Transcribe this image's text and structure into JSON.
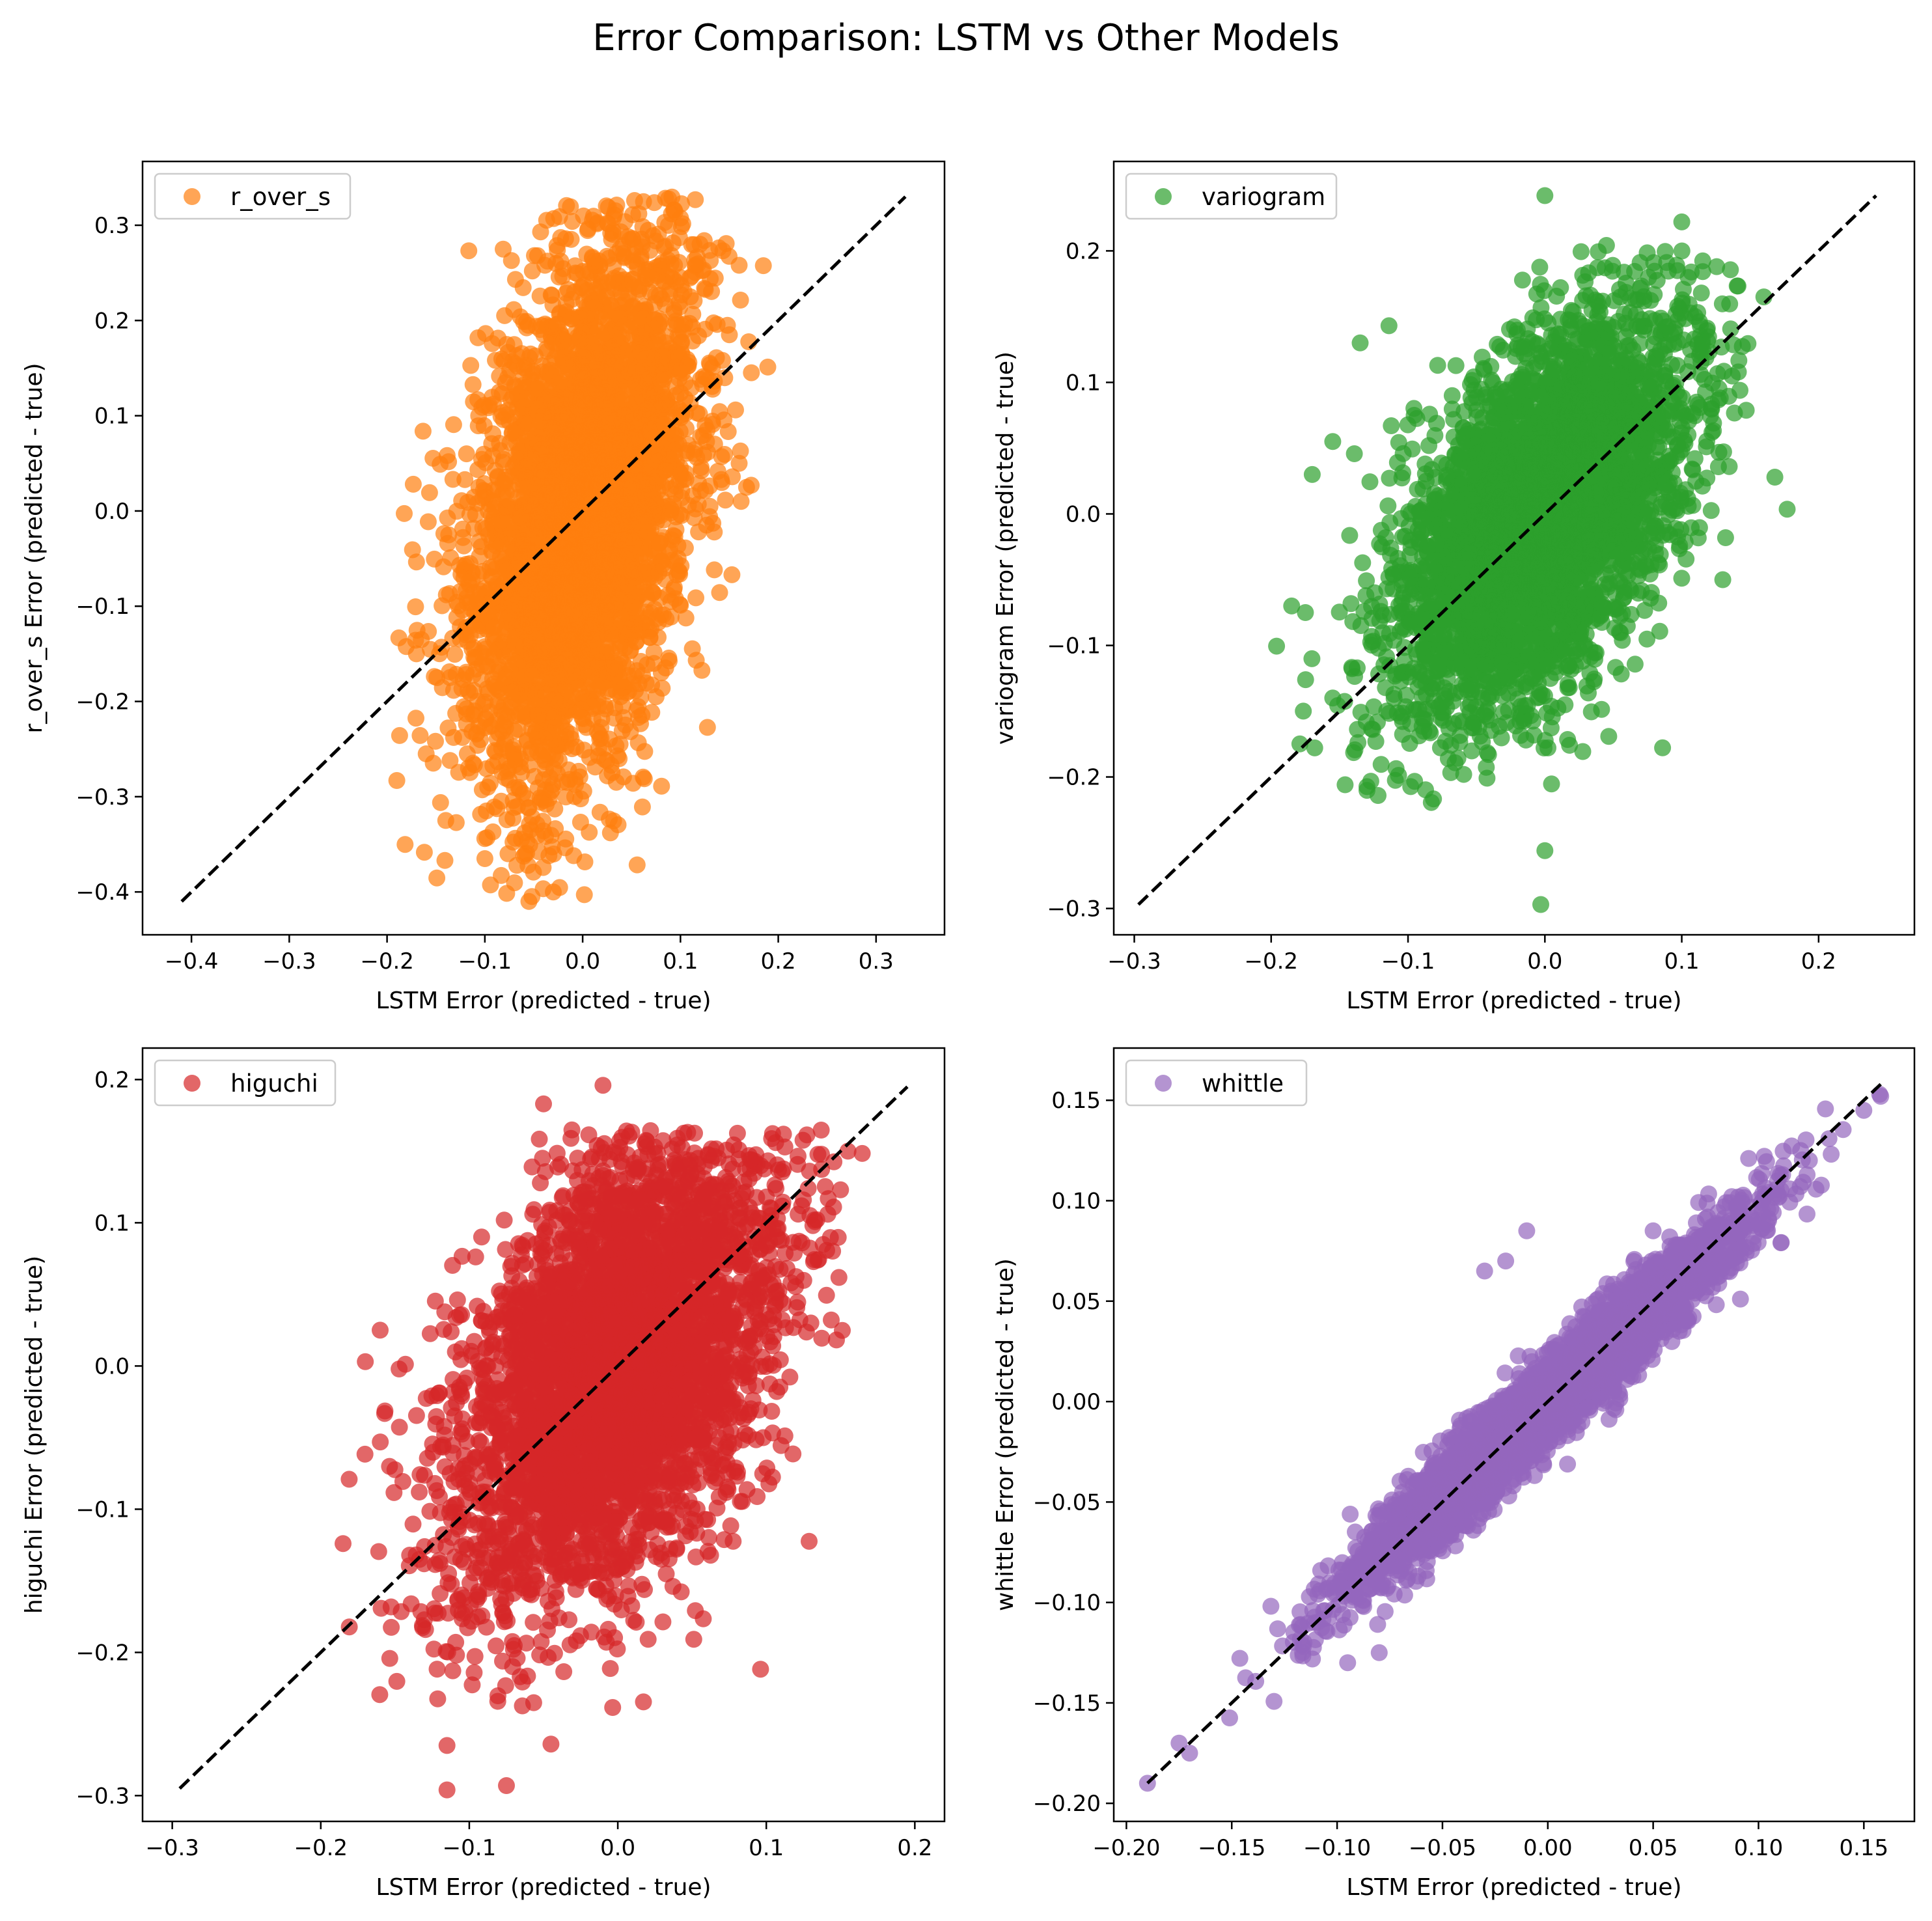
{
  "figure": {
    "title": "Error Comparison: LSTM vs Other Models"
  },
  "chart_data": [
    {
      "type": "scatter",
      "xlabel": "LSTM Error (predicted - true)",
      "ylabel": "r_over_s Error (predicted - true)",
      "xlim": [
        -0.45,
        0.37
      ],
      "ylim": [
        -0.445,
        0.367
      ],
      "xticks": [
        -0.4,
        -0.3,
        -0.2,
        -0.1,
        0.0,
        0.1,
        0.2,
        0.3
      ],
      "yticks": [
        -0.4,
        -0.3,
        -0.2,
        -0.1,
        0.0,
        0.1,
        0.2,
        0.3
      ],
      "xtick_labels": [
        "−0.4",
        "−0.3",
        "−0.2",
        "−0.1",
        "0.0",
        "0.1",
        "0.2",
        "0.3"
      ],
      "ytick_labels": [
        "−0.4",
        "−0.3",
        "−0.2",
        "−0.1",
        "0.0",
        "0.1",
        "0.2",
        "0.3"
      ],
      "legend": "r_over_s",
      "legend_position": "upper left",
      "color": "#ff7f0e",
      "cloud": {
        "cx": 0.0,
        "cy": 0.0,
        "sx": 0.058,
        "rho": 0.45,
        "ey": 0.135,
        "slope": 1.05,
        "clip_y": [
          -0.41,
          0.33
        ]
      },
      "outliers": [
        [
          -0.19,
          -0.283
        ],
        [
          -0.055,
          -0.41
        ],
        [
          -0.03,
          -0.4
        ],
        [
          0.16,
          0.258
        ],
        [
          0.15,
          0.185
        ],
        [
          -0.165,
          -0.135
        ],
        [
          -0.17,
          -0.15
        ],
        [
          -0.16,
          -0.255
        ],
        [
          -0.14,
          -0.325
        ],
        [
          -0.1,
          -0.365
        ],
        [
          0.12,
          0.28
        ],
        [
          0.16,
          0.05
        ]
      ],
      "diagonal": [
        -0.41,
        0.33
      ]
    },
    {
      "type": "scatter",
      "xlabel": "LSTM Error (predicted - true)",
      "ylabel": "variogram Error (predicted - true)",
      "xlim": [
        -0.315,
        0.27
      ],
      "ylim": [
        -0.32,
        0.268
      ],
      "xticks": [
        -0.3,
        -0.2,
        -0.1,
        0.0,
        0.1,
        0.2
      ],
      "yticks": [
        -0.3,
        -0.2,
        -0.1,
        0.0,
        0.1,
        0.2
      ],
      "xtick_labels": [
        "−0.3",
        "−0.2",
        "−0.1",
        "0.0",
        "0.1",
        "0.2"
      ],
      "ytick_labels": [
        "−0.3",
        "−0.2",
        "−0.1",
        "0.0",
        "0.1",
        "0.2"
      ],
      "legend": "variogram",
      "legend_position": "upper left",
      "color": "#2ca02c",
      "cloud": {
        "cx": 0.0,
        "cy": 0.0,
        "sx": 0.052,
        "rho": 0.35,
        "ey": 0.065,
        "slope": 0.75,
        "clip_y": [
          -0.22,
          0.205
        ]
      },
      "outliers": [
        [
          0.0,
          0.242
        ],
        [
          -0.185,
          -0.07
        ],
        [
          -0.003,
          -0.297
        ],
        [
          0.0,
          -0.256
        ],
        [
          0.1,
          0.222
        ],
        [
          -0.17,
          0.03
        ],
        [
          -0.175,
          -0.075
        ],
        [
          -0.135,
          0.13
        ],
        [
          -0.155,
          0.055
        ],
        [
          0.16,
          0.165
        ],
        [
          0.13,
          -0.05
        ],
        [
          -0.155,
          -0.14
        ]
      ],
      "diagonal": [
        -0.297,
        0.242
      ]
    },
    {
      "type": "scatter",
      "xlabel": "LSTM Error (predicted - true)",
      "ylabel": "higuchi Error (predicted - true)",
      "xlim": [
        -0.32,
        0.22
      ],
      "ylim": [
        -0.318,
        0.222
      ],
      "xticks": [
        -0.3,
        -0.2,
        -0.1,
        0.0,
        0.1,
        0.2
      ],
      "yticks": [
        -0.3,
        -0.2,
        -0.1,
        0.0,
        0.1,
        0.2
      ],
      "xtick_labels": [
        "−0.3",
        "−0.2",
        "−0.1",
        "0.0",
        "0.1",
        "0.2"
      ],
      "ytick_labels": [
        "−0.3",
        "−0.2",
        "−0.1",
        "0.0",
        "0.1",
        "0.2"
      ],
      "legend": "higuchi",
      "legend_position": "upper left",
      "color": "#d62728",
      "cloud": {
        "cx": 0.0,
        "cy": 0.0,
        "sx": 0.055,
        "rho": 0.4,
        "ey": 0.075,
        "slope": 0.7,
        "clip_y": [
          -0.24,
          0.165
        ]
      },
      "outliers": [
        [
          -0.115,
          -0.296
        ],
        [
          -0.075,
          -0.293
        ],
        [
          -0.185,
          -0.124
        ],
        [
          -0.17,
          0.003
        ],
        [
          -0.115,
          -0.265
        ],
        [
          -0.045,
          -0.264
        ],
        [
          -0.01,
          0.196
        ],
        [
          0.155,
          0.15
        ],
        [
          0.15,
          0.123
        ],
        [
          -0.05,
          0.183
        ],
        [
          -0.16,
          0.025
        ],
        [
          0.13,
          0.03
        ]
      ],
      "diagonal": [
        -0.295,
        0.195
      ]
    },
    {
      "type": "scatter",
      "xlabel": "LSTM Error (predicted - true)",
      "ylabel": "whittle Error (predicted - true)",
      "xlim": [
        -0.206,
        0.174
      ],
      "ylim": [
        -0.209,
        0.176
      ],
      "xticks": [
        -0.2,
        -0.15,
        -0.1,
        -0.05,
        0.0,
        0.05,
        0.1,
        0.15
      ],
      "yticks": [
        -0.2,
        -0.15,
        -0.1,
        -0.05,
        0.0,
        0.05,
        0.1,
        0.15
      ],
      "xtick_labels": [
        "−0.20",
        "−0.15",
        "−0.10",
        "−0.05",
        "0.00",
        "0.05",
        "0.10",
        "0.15"
      ],
      "ytick_labels": [
        "−0.20",
        "−0.15",
        "−0.10",
        "−0.05",
        "0.00",
        "0.05",
        "0.10",
        "0.15"
      ],
      "legend": "whittle",
      "legend_position": "upper left",
      "color": "#9467bd",
      "cloud": {
        "cx": 0.0,
        "cy": 0.0,
        "sx": 0.045,
        "rho": 0.0,
        "ey": 0.011,
        "slope": 0.95,
        "clip_y": [
          -0.2,
          0.16
        ]
      },
      "outliers": [
        [
          -0.19,
          -0.19
        ],
        [
          -0.175,
          -0.17
        ],
        [
          -0.17,
          -0.175
        ],
        [
          0.158,
          0.152
        ],
        [
          0.15,
          0.145
        ],
        [
          -0.01,
          0.085
        ],
        [
          -0.02,
          0.07
        ],
        [
          -0.03,
          0.065
        ],
        [
          0.05,
          0.085
        ],
        [
          -0.095,
          -0.13
        ],
        [
          -0.08,
          -0.125
        ],
        [
          0.12,
          0.125
        ]
      ],
      "diagonal": [
        -0.19,
        0.158
      ]
    }
  ]
}
